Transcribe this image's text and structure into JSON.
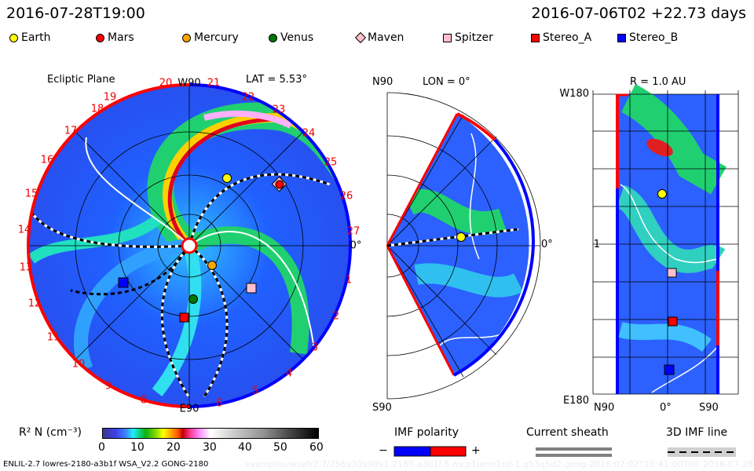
{
  "header": {
    "time": "2016-07-28T19:00",
    "run": "2016-07-06T02 +22.73 days"
  },
  "legend": [
    {
      "name": "Earth",
      "shape": "circle",
      "color": "#ffff00"
    },
    {
      "name": "Mars",
      "shape": "circle",
      "color": "#ff0000"
    },
    {
      "name": "Mercury",
      "shape": "circle",
      "color": "#ffa500"
    },
    {
      "name": "Venus",
      "shape": "circle",
      "color": "#007000"
    },
    {
      "name": "Maven",
      "shape": "diamond",
      "color": "#ffc0cb"
    },
    {
      "name": "Spitzer",
      "shape": "square",
      "color": "#ffc0cb"
    },
    {
      "name": "Stereo_A",
      "shape": "square",
      "color": "#ff0000"
    },
    {
      "name": "Stereo_B",
      "shape": "square",
      "color": "#0000ff"
    }
  ],
  "ecliptic": {
    "title": "Ecliptic Plane",
    "lat": "LAT = 5.53°",
    "top": "W90",
    "bottom": "E90",
    "right": "0°",
    "sectors": [
      "0",
      "1",
      "2",
      "3",
      "4",
      "5",
      "6",
      "8",
      "9",
      "10",
      "11",
      "12",
      "13",
      "14",
      "15",
      "16",
      "17",
      "18",
      "19",
      "20",
      "21",
      "22",
      "23",
      "24",
      "25",
      "26",
      "27"
    ]
  },
  "meridional": {
    "top": "N90",
    "lon": "LON = 0°",
    "right": "0°",
    "bottom": "S90"
  },
  "radial": {
    "title": "R = 1.0 AU",
    "top": "W180",
    "mid": "1",
    "bottom": "E180",
    "x_left": "N90",
    "x_mid": "0°",
    "x_right": "S90"
  },
  "colorbar": {
    "label": "R² N (cm⁻³)",
    "ticks": [
      "0",
      "10",
      "20",
      "30",
      "40",
      "50",
      "60"
    ],
    "range": [
      0,
      60
    ]
  },
  "imf": {
    "title": "IMF polarity",
    "minus": "−",
    "plus": "+",
    "neg_color": "#0000ff",
    "pos_color": "#ff0000"
  },
  "sheath": {
    "title": "Current sheath"
  },
  "imfline": {
    "title": "3D IMF line"
  },
  "footer": {
    "model": "ENLIL-2.7 lowres-2180-a3b1f WSA_V2.2 GONG-2180",
    "path": "examples/wsafr2.7/256x30x90x1.2180-a3b1f.8-mcp1umn1cd-1.g53q5d2.gong-2016:07:02T10:41:00T00",
    "date": "2016-07-28"
  }
}
